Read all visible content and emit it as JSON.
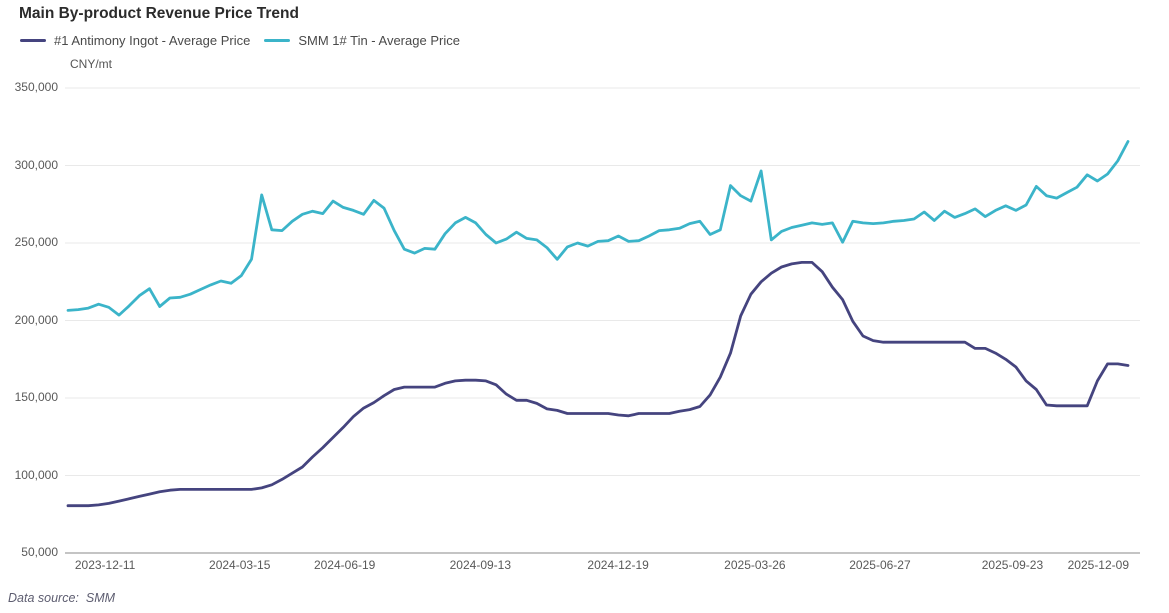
{
  "header": {
    "title": "Main By-product Revenue Price Trend"
  },
  "footer": {
    "source_label": "Data source:",
    "source_value": "SMM"
  },
  "chart_data": {
    "type": "line",
    "title": "Main By-product Revenue Price Trend",
    "unit": "CNY/mt",
    "ylim": [
      50000,
      350000
    ],
    "y_ticks": [
      50000,
      100000,
      150000,
      200000,
      250000,
      300000,
      350000
    ],
    "y_tick_labels": [
      "50,000",
      "100,000",
      "150,000",
      "200,000",
      "250,000",
      "300,000",
      "350,000"
    ],
    "x_tick_labels": [
      "2023-12-11",
      "2024-03-15",
      "2024-06-19",
      "2024-09-13",
      "2024-12-19",
      "2025-03-26",
      "2025-06-27",
      "2025-09-23",
      "2025-12-09"
    ],
    "x_range": [
      "2023-12-11",
      "2025-12-09"
    ],
    "sampling": "weekly",
    "grid": true,
    "legend_position": "top-left",
    "series": [
      {
        "name": "#1 Antimony Ingot - Average Price",
        "color": "#45447f",
        "values": [
          80500,
          80500,
          80500,
          81000,
          82000,
          83500,
          85000,
          86500,
          88000,
          89500,
          90500,
          91000,
          91000,
          91000,
          91000,
          91000,
          91000,
          91000,
          91000,
          92000,
          94000,
          97500,
          101500,
          105500,
          112000,
          118000,
          124500,
          131000,
          138000,
          143500,
          147000,
          151500,
          155500,
          157000,
          157000,
          157000,
          157000,
          159500,
          161000,
          161500,
          161500,
          161000,
          158500,
          152500,
          148500,
          148500,
          146500,
          143000,
          142000,
          140000,
          140000,
          140000,
          140000,
          140000,
          139000,
          138500,
          140000,
          140000,
          140000,
          140000,
          141500,
          142500,
          144500,
          152000,
          163500,
          179000,
          203000,
          217000,
          225000,
          230500,
          234500,
          236500,
          237500,
          237500,
          231500,
          221500,
          213500,
          199500,
          190000,
          187000,
          186000,
          186000,
          186000,
          186000,
          186000,
          186000,
          186000,
          186000,
          186000,
          182000,
          182000,
          179000,
          175000,
          170000,
          161000,
          155500,
          145500,
          145000,
          145000,
          145000,
          145000,
          161000,
          172000,
          172000,
          171000
        ]
      },
      {
        "name": "SMM 1# Tin - Average Price",
        "color": "#3bb4c9",
        "values": [
          206500,
          207000,
          208000,
          210500,
          208500,
          203500,
          209500,
          216000,
          220500,
          209000,
          214500,
          215000,
          217000,
          220000,
          223000,
          225500,
          224000,
          229000,
          239500,
          281000,
          258500,
          258000,
          264000,
          268500,
          270500,
          269000,
          277000,
          273000,
          271000,
          268500,
          277500,
          272500,
          258000,
          246000,
          243500,
          246500,
          246000,
          256000,
          263000,
          266500,
          263000,
          255500,
          250000,
          252500,
          257000,
          253000,
          252000,
          247000,
          239500,
          247500,
          250000,
          248000,
          251000,
          251500,
          254500,
          251000,
          251500,
          254500,
          258000,
          258500,
          259500,
          262500,
          264000,
          255500,
          258500,
          287000,
          280500,
          277000,
          296500,
          252000,
          257500,
          260000,
          261500,
          263000,
          262000,
          263000,
          250500,
          264000,
          263000,
          262500,
          263000,
          264000,
          264500,
          265500,
          270000,
          264500,
          270500,
          266500,
          269000,
          272000,
          267000,
          271000,
          274000,
          271000,
          274500,
          286500,
          280500,
          279000,
          282500,
          286000,
          294000,
          290000,
          294500,
          303000,
          315500
        ]
      }
    ]
  }
}
